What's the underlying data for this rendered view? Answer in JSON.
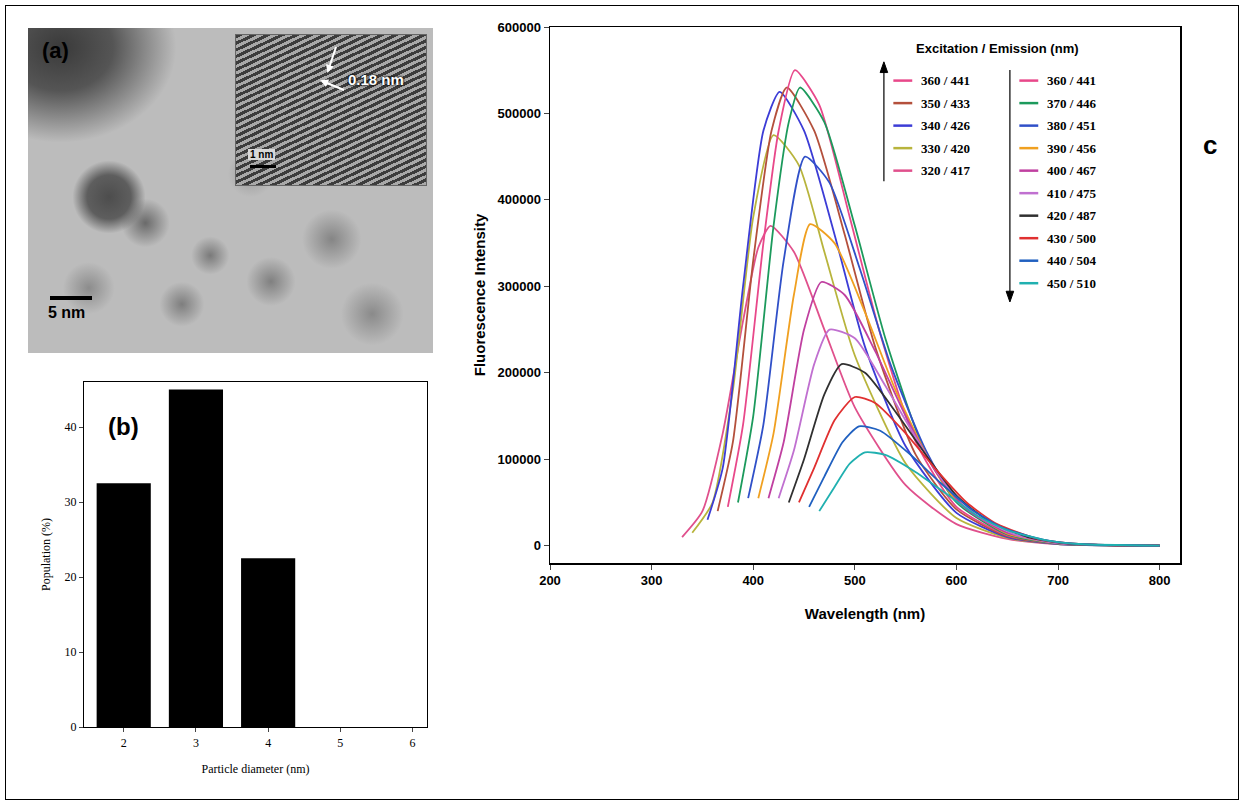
{
  "chart_data": [
    {
      "type": "image",
      "panel": "(a)",
      "annotations": [
        "0.18 nm",
        "1 nm",
        "5 nm"
      ]
    },
    {
      "type": "bar",
      "panel": "(b)",
      "x": [
        2,
        3,
        4
      ],
      "values": [
        32.5,
        45,
        22.5
      ],
      "color": "#000000",
      "xlabel": "Particle diameter (nm)",
      "ylabel": "Population (%)",
      "xlim": [
        1.45,
        6.2
      ],
      "xticks": [
        2,
        3,
        4,
        5,
        6
      ],
      "ylim": [
        0,
        46
      ],
      "yticks": [
        0,
        10,
        20,
        30,
        40
      ],
      "grid": false
    },
    {
      "type": "line",
      "panel": "c",
      "xlabel": "Wavelength (nm)",
      "ylabel": "Fluorescence Intensity",
      "legend_title": "Excitation / Emission (nm)",
      "legend": "upper right",
      "grid": false,
      "xlim": [
        200,
        820
      ],
      "xticks": [
        200,
        300,
        400,
        500,
        600,
        700,
        800
      ],
      "ylim": [
        -20000,
        600000
      ],
      "yticks": [
        0,
        100000,
        200000,
        300000,
        400000,
        500000,
        600000
      ],
      "series": [
        {
          "name": "320 / 417",
          "color": "#e0508c",
          "x": [
            330,
            350,
            370,
            390,
            405,
            417,
            440,
            470,
            500,
            550,
            600,
            650,
            700,
            800
          ],
          "values": [
            10000,
            40000,
            130000,
            260000,
            345000,
            370000,
            340000,
            250000,
            160000,
            70000,
            25000,
            8000,
            2000,
            0
          ]
        },
        {
          "name": "330 / 420",
          "color": "#b8b43c",
          "x": [
            340,
            360,
            380,
            400,
            420,
            445,
            470,
            500,
            550,
            600,
            650,
            700,
            800
          ],
          "values": [
            15000,
            50000,
            180000,
            380000,
            475000,
            440000,
            340000,
            220000,
            95000,
            32000,
            9000,
            2000,
            0
          ]
        },
        {
          "name": "340 / 426",
          "color": "#3c3cd6",
          "x": [
            355,
            370,
            390,
            410,
            426,
            450,
            480,
            510,
            550,
            600,
            650,
            700,
            800
          ],
          "values": [
            30000,
            90000,
            300000,
            480000,
            525000,
            480000,
            360000,
            230000,
            115000,
            38000,
            10000,
            2000,
            0
          ]
        },
        {
          "name": "350 / 433",
          "color": "#b4503c",
          "x": [
            365,
            380,
            400,
            418,
            433,
            460,
            490,
            520,
            560,
            600,
            650,
            700,
            800
          ],
          "values": [
            40000,
            120000,
            330000,
            480000,
            530000,
            480000,
            360000,
            230000,
            105000,
            42000,
            11000,
            2500,
            0
          ]
        },
        {
          "name": "360 / 441",
          "color": "#e8488a",
          "x": [
            375,
            390,
            410,
            425,
            441,
            465,
            495,
            525,
            560,
            600,
            650,
            700,
            800
          ],
          "values": [
            45000,
            140000,
            350000,
            480000,
            550000,
            510000,
            380000,
            245000,
            120000,
            45000,
            12000,
            2500,
            0
          ]
        },
        {
          "name": "370 / 446",
          "color": "#1c9a5c",
          "x": [
            385,
            400,
            420,
            435,
            446,
            470,
            500,
            530,
            565,
            600,
            650,
            700,
            800
          ],
          "values": [
            50000,
            150000,
            370000,
            490000,
            530000,
            490000,
            370000,
            240000,
            120000,
            50000,
            13000,
            2500,
            0
          ]
        },
        {
          "name": "380 / 451",
          "color": "#3050c8",
          "x": [
            395,
            410,
            430,
            451,
            475,
            505,
            535,
            570,
            600,
            650,
            700,
            800
          ],
          "values": [
            55000,
            140000,
            330000,
            450000,
            420000,
            320000,
            210000,
            110000,
            52000,
            14000,
            3000,
            0
          ]
        },
        {
          "name": "390 / 456",
          "color": "#f0a020",
          "x": [
            405,
            420,
            440,
            456,
            480,
            510,
            540,
            575,
            600,
            650,
            700,
            800
          ],
          "values": [
            55000,
            130000,
            290000,
            372000,
            350000,
            270000,
            180000,
            95000,
            52000,
            14000,
            3000,
            0
          ]
        },
        {
          "name": "400 / 467",
          "color": "#c040a0",
          "x": [
            415,
            430,
            450,
            467,
            490,
            520,
            550,
            580,
            610,
            650,
            700,
            800
          ],
          "values": [
            55000,
            120000,
            250000,
            305000,
            290000,
            225000,
            150000,
            85000,
            42000,
            15000,
            3000,
            0
          ]
        },
        {
          "name": "410 / 475",
          "color": "#c070d0",
          "x": [
            425,
            440,
            460,
            475,
            500,
            530,
            560,
            590,
            620,
            660,
            700,
            800
          ],
          "values": [
            55000,
            110000,
            210000,
            250000,
            240000,
            185000,
            125000,
            70000,
            35000,
            12000,
            3000,
            0
          ]
        },
        {
          "name": "420 / 487",
          "color": "#303030",
          "x": [
            435,
            450,
            470,
            487,
            510,
            540,
            570,
            600,
            630,
            670,
            710,
            800
          ],
          "values": [
            50000,
            100000,
            175000,
            210000,
            200000,
            155000,
            105000,
            58000,
            30000,
            10000,
            2500,
            0
          ]
        },
        {
          "name": "430 / 500",
          "color": "#e03030",
          "x": [
            445,
            460,
            480,
            500,
            520,
            550,
            580,
            610,
            640,
            680,
            720,
            800
          ],
          "values": [
            50000,
            90000,
            145000,
            172000,
            165000,
            130000,
            88000,
            50000,
            25000,
            8000,
            2000,
            0
          ]
        },
        {
          "name": "440 / 504",
          "color": "#2060c0",
          "x": [
            455,
            470,
            488,
            504,
            525,
            555,
            585,
            615,
            645,
            685,
            720,
            800
          ],
          "values": [
            45000,
            80000,
            120000,
            138000,
            133000,
            105000,
            72000,
            42000,
            21000,
            7000,
            2000,
            0
          ]
        },
        {
          "name": "450 / 510",
          "color": "#20b0b0",
          "x": [
            465,
            480,
            495,
            510,
            530,
            560,
            590,
            620,
            650,
            690,
            720,
            800
          ],
          "values": [
            40000,
            68000,
            95000,
            108000,
            105000,
            85000,
            60000,
            35000,
            18000,
            6000,
            2000,
            0
          ]
        }
      ]
    }
  ]
}
